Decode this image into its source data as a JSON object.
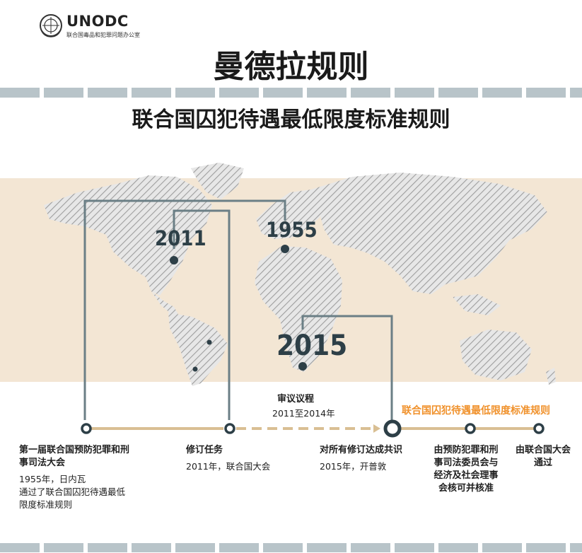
{
  "header": {
    "org_name": "UNODC",
    "org_subtitle": "联合国毒品和犯罪问题办公室",
    "logo_icon": "un-emblem-icon"
  },
  "title": "曼德拉规则",
  "subtitle": "联合国囚犯待遇最低限度标准规则",
  "map": {
    "years": [
      "1955",
      "2011",
      "2015"
    ]
  },
  "timeline": {
    "review": {
      "title": "审议议程",
      "detail": "2011至2014年"
    },
    "final_title": "联合国囚犯待遇最低限度标准规则",
    "steps": [
      {
        "title": [
          "第一届联合国预防犯罪和刑",
          "事司法大会"
        ],
        "lines": [
          "1955年，日内瓦",
          "通过了联合国囚犯待遇最低",
          "限度标准规则"
        ]
      },
      {
        "title": [
          "修订任务"
        ],
        "lines": [
          "2011年，联合国大会"
        ]
      },
      {
        "title": [
          "对所有修订达成共识"
        ],
        "lines": [
          "2015年，开普敦"
        ]
      },
      {
        "title": [
          "由预防犯罪和刑",
          "事司法委员会与",
          "经济及社会理事",
          "会核可并核准"
        ],
        "lines": []
      },
      {
        "title": [
          "由联合国大会",
          "通过"
        ],
        "lines": []
      }
    ]
  },
  "colors": {
    "dark_slate": "#2d3f47",
    "connector": "#6b7f86",
    "timeline_tan": "#d9bf93",
    "orange": "#f0912b",
    "beige": "#f3e6d4",
    "stripe": "#b8c4c9"
  }
}
